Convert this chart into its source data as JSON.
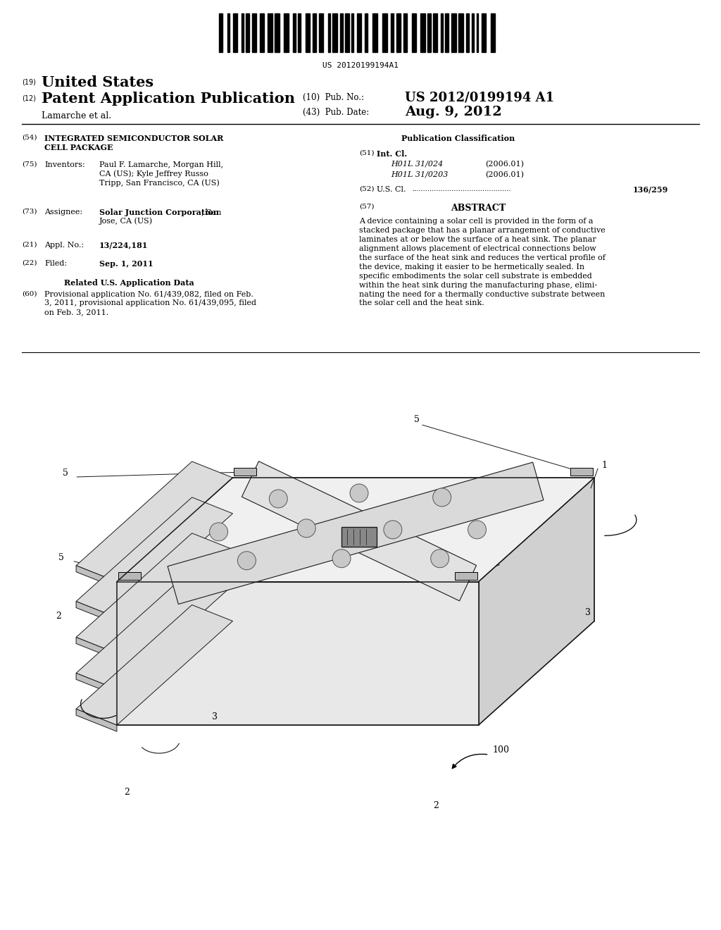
{
  "background_color": "#ffffff",
  "page_width": 10.24,
  "page_height": 13.2,
  "barcode_text": "US 20120199194A1",
  "header": {
    "number_19": "(19)",
    "united_states": "United States",
    "number_12": "(12)",
    "patent_app": "Patent Application Publication",
    "inventors_name": "Lamarche et al.",
    "pub_no_label": "(10)  Pub. No.:",
    "pub_no_value": "US 2012/0199194 A1",
    "pub_date_label": "(43)  Pub. Date:",
    "pub_date_value": "Aug. 9, 2012"
  },
  "left_col": {
    "item_54_title_line1": "INTEGRATED SEMICONDUCTOR SOLAR",
    "item_54_title_line2": "CELL PACKAGE",
    "item_75_val_line1": "Paul F. Lamarche, Morgan Hill,",
    "item_75_val_line2": "CA (US); Kyle Jeffrey Russo",
    "item_75_val_line3": "Tripp, San Francisco, CA (US)",
    "item_73_val_bold": "Solar Junction Corporation",
    "item_73_val_rest": ", San",
    "item_73_val_line2": "Jose, CA (US)",
    "item_21_val": "13/224,181",
    "item_22_val": "Sep. 1, 2011",
    "related_title": "Related U.S. Application Data",
    "item_60_lines": [
      "Provisional application No. 61/439,082, filed on Feb.",
      "3, 2011, provisional application No. 61/439,095, filed",
      "on Feb. 3, 2011."
    ]
  },
  "right_col": {
    "pub_class_title": "Publication Classification",
    "item_51_class1": "H01L 31/024",
    "item_51_year1": "(2006.01)",
    "item_51_class2": "H01L 31/0203",
    "item_51_year2": "(2006.01)",
    "item_52_dots": ".............................................",
    "item_52_val": "136/259",
    "abstract_title": "ABSTRACT",
    "abstract_lines": [
      "A device containing a solar cell is provided in the form of a",
      "stacked package that has a planar arrangement of conductive",
      "laminates at or below the surface of a heat sink. The planar",
      "alignment allows placement of electrical connections below",
      "the surface of the heat sink and reduces the vertical profile of",
      "the device, making it easier to be hermetically sealed. In",
      "specific embodiments the solar cell substrate is embedded",
      "within the heat sink during the manufacturing phase, elimi-",
      "nating the need for a thermally conductive substrate between",
      "the solar cell and the heat sink."
    ]
  }
}
